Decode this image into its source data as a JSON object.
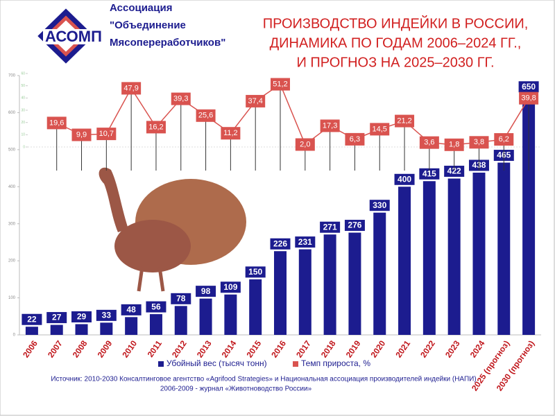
{
  "header": {
    "logo": "АСОМП",
    "org_lines": [
      "Ассоциация",
      "\"Объединение",
      "Мясопереработчиков\""
    ]
  },
  "chart_data": {
    "type": "bar",
    "title_lines": [
      "ПРОИЗВОДСТВО ИНДЕЙКИ В РОССИИ,",
      "ДИНАМИКА ПО ГОДАМ 2006–2024 ГГ.,",
      "И ПРОГНОЗ НА 2025–2030 ГГ."
    ],
    "categories": [
      "2006",
      "2007",
      "2008",
      "2009",
      "2010",
      "2011",
      "2012",
      "2013",
      "2014",
      "2015",
      "2016",
      "2017",
      "2018",
      "2019",
      "2020",
      "2021",
      "2022",
      "2023",
      "2024",
      "2025 (прогноз)",
      "2030 (прогноз)"
    ],
    "series": [
      {
        "name": "Убойный вес (тысяч тонн)",
        "type": "bar",
        "color": "#1c1c8f",
        "values": [
          22,
          27,
          29,
          33,
          48,
          56,
          78,
          98,
          109,
          150,
          226,
          231,
          271,
          276,
          330,
          400,
          415,
          422,
          438,
          465,
          650
        ]
      },
      {
        "name": "Темп прироста, %",
        "type": "line",
        "axis": "y2",
        "color": "#d9534f",
        "values": [
          null,
          19.6,
          9.9,
          10.7,
          47.9,
          16.2,
          39.3,
          25.6,
          11.2,
          37.4,
          51.2,
          2.0,
          17.3,
          6.3,
          14.5,
          21.2,
          3.6,
          1.8,
          3.8,
          6.2,
          39.8
        ],
        "value_labels": [
          null,
          "19,6",
          "9,9",
          "10,7",
          "47,9",
          "16,2",
          "39,3",
          "25,6",
          "11,2",
          "37,4",
          "51,2",
          "2,0",
          "17,3",
          "6,3",
          "14,5",
          "21,2",
          "3,6",
          "1,8",
          "3,8",
          "6,2",
          "39,8"
        ]
      }
    ],
    "ylim": [
      0,
      700
    ],
    "yticks": [
      0,
      100,
      200,
      300,
      400,
      500,
      600,
      700
    ],
    "y2lim": [
      0,
      60
    ],
    "y2ticks": [
      0,
      10,
      20,
      30,
      40,
      50,
      60
    ],
    "legend": "bottom",
    "source_lines": [
      "Источник: 2010-2030 Консалтинговое агентство «Agrifood Strategies» и Национальная ассоциация производителей индейки (НАПИ)",
      "2006-2009 - журнал «Животноводство России»"
    ]
  }
}
